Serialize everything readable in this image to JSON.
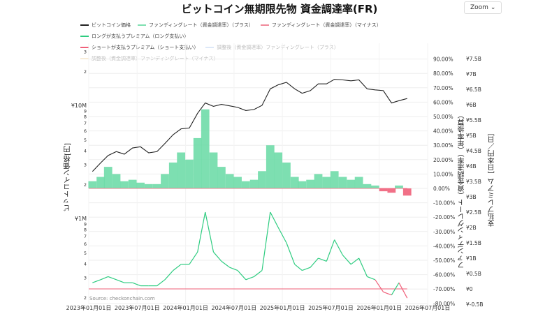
{
  "header": {
    "title": "ビットコイン無期限先物 資金調達率(FR)",
    "zoom_label": "Zoom"
  },
  "legend": [
    {
      "label": "ビットコイン価格",
      "color": "#222222",
      "dim": false
    },
    {
      "label": "ファンディングレート（資金調達率）（プラス）",
      "color": "#7ee0b0",
      "dim": false
    },
    {
      "label": "ファンディングレート（資金調達率）（マイナス）",
      "color": "#f08a9a",
      "dim": false
    },
    {
      "label": "ロングが支払うプレミアム（ロング支払い）",
      "color": "#2ecc80",
      "dim": false
    },
    {
      "label": "ショートが支払うプレミアム（ショート支払い）",
      "color": "#f0607a",
      "dim": false
    },
    {
      "label": "調整後（資金調達率）ファンディングレート（プラス）",
      "color": "#dde8f8",
      "dim": true
    },
    {
      "label": "調整後（資金調達率）ファンディングレート（マイナス）",
      "color": "#f8ecd8",
      "dim": true
    }
  ],
  "source": "Source: checkonchain.com",
  "chart_data": {
    "type": "line",
    "title": "ビットコイン無期限先物 資金調達率(FR)",
    "x": [
      "2023-01",
      "2023-02",
      "2023-03",
      "2023-04",
      "2023-05",
      "2023-06",
      "2023-07",
      "2023-08",
      "2023-09",
      "2023-10",
      "2023-11",
      "2023-12",
      "2024-01",
      "2024-02",
      "2024-03",
      "2024-04",
      "2024-05",
      "2024-06",
      "2024-07",
      "2024-08",
      "2024-09",
      "2024-10",
      "2024-11",
      "2024-12",
      "2025-01",
      "2025-02",
      "2025-03",
      "2025-04",
      "2025-05",
      "2025-06",
      "2025-07",
      "2025-08",
      "2025-09",
      "2025-10",
      "2025-11",
      "2025-12",
      "2026-01",
      "2026-02",
      "2026-03",
      "2026-04"
    ],
    "x_ticks": [
      "2023年01月01日",
      "2023年07月01日",
      "2024年01月01日",
      "2024年07月01日",
      "2025年01月01日",
      "2025年07月01日",
      "2026年01月01日",
      "2026年07月01日"
    ],
    "y_left": {
      "label": "ビットコイン価格[円]",
      "scale": "log",
      "unit": "JPY",
      "ticks": [
        "3",
        "2",
        "¥10M",
        "9",
        "8",
        "7",
        "6",
        "5",
        "4",
        "3",
        "2",
        "¥1M",
        "9",
        "8",
        "7",
        "6",
        "5",
        "4",
        "3",
        "2"
      ]
    },
    "y_right": {
      "label": "ファンディングレート（資金調達率）（年率換算）",
      "range": [
        -80,
        90
      ],
      "ticks": [
        "90.00%",
        "80.00%",
        "70.00%",
        "60.00%",
        "50.00%",
        "40.00%",
        "30.00%",
        "20.00%",
        "10.00%",
        "0.00%",
        "-10.00%",
        "-20.00%",
        "-30.00%",
        "-40.00%",
        "-50.00%",
        "-60.00%",
        "-70.00%",
        "-80.00%"
      ]
    },
    "y_right2": {
      "label": "支払プレミアム［日本円／日］",
      "range": [
        -0.5,
        7.5
      ],
      "ticks": [
        "¥7.5B",
        "¥7B",
        "¥6.5B",
        "¥6B",
        "¥5.5B",
        "¥5B",
        "¥4.5B",
        "¥4B",
        "¥3.5B",
        "¥3B",
        "¥2.5B",
        "¥2B",
        "¥1.5B",
        "¥1B",
        "¥0.5B",
        "¥0",
        "¥-0.5B"
      ]
    },
    "series": [
      {
        "name": "ビットコイン価格",
        "unit": "million JPY",
        "values": [
          2.6,
          3.1,
          3.6,
          3.9,
          3.7,
          4.2,
          4.3,
          3.8,
          3.9,
          4.6,
          5.5,
          6.2,
          6.3,
          8.5,
          10.5,
          9.8,
          10.2,
          9.9,
          9.6,
          9.0,
          9.2,
          10.0,
          14.0,
          15.2,
          16.0,
          14.0,
          12.8,
          13.5,
          15.5,
          15.5,
          17.0,
          16.8,
          16.5,
          16.8,
          14.0,
          13.7,
          13.5,
          10.5,
          11.0,
          11.5
        ]
      },
      {
        "name": "ファンディングレート（資金調達率）",
        "unit": "% annualized",
        "values": [
          5,
          8,
          15,
          10,
          5,
          6,
          4,
          3,
          3,
          10,
          18,
          25,
          20,
          35,
          55,
          25,
          15,
          10,
          8,
          5,
          6,
          12,
          30,
          25,
          18,
          8,
          5,
          6,
          10,
          8,
          12,
          8,
          6,
          8,
          3,
          2,
          -2,
          -3,
          2,
          -5
        ]
      },
      {
        "name": "支払プレミアム",
        "unit": "billion JPY/day",
        "values": [
          0.2,
          0.3,
          0.4,
          0.3,
          0.2,
          0.2,
          0.1,
          0.1,
          0.1,
          0.3,
          0.6,
          0.8,
          0.8,
          1.2,
          2.5,
          1.2,
          0.9,
          0.7,
          0.6,
          0.3,
          0.4,
          0.6,
          2.5,
          2.0,
          1.5,
          0.8,
          0.6,
          0.7,
          1.0,
          0.9,
          1.6,
          1.1,
          0.8,
          1.0,
          0.4,
          0.3,
          -0.1,
          -0.2,
          0.2,
          -0.3
        ]
      }
    ],
    "grid": true,
    "legend_position": "top"
  }
}
